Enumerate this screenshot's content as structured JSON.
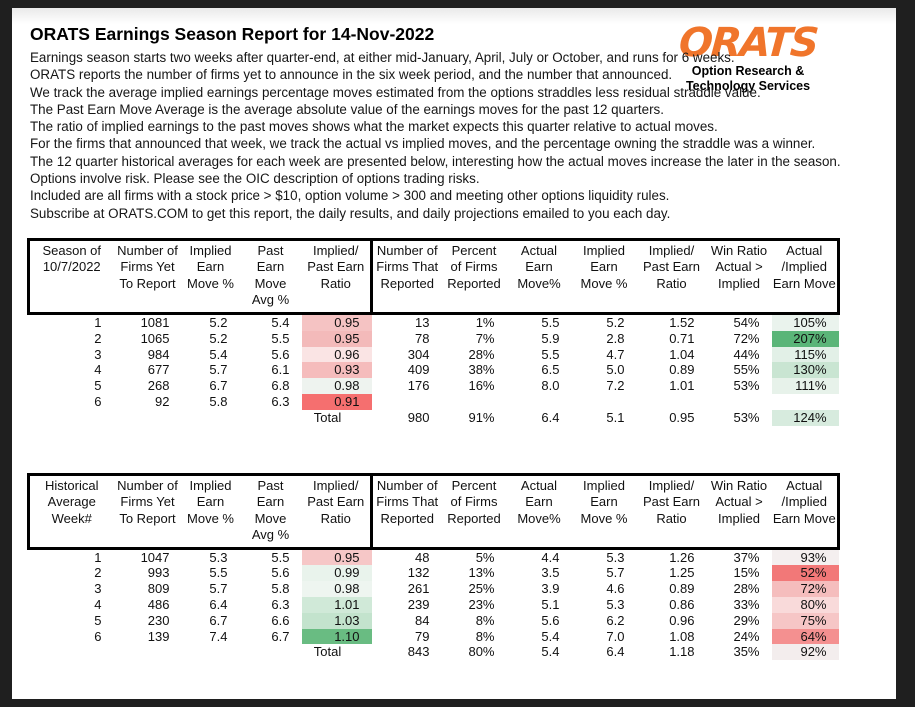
{
  "page": {
    "title": "ORATS Earnings Season Report for 14-Nov-2022",
    "intro_lines": [
      "Earnings season starts two weeks after quarter-end, at either mid-January, April, July or October, and runs for 6 weeks.",
      "ORATS reports the number of firms yet to announce in the six week period, and the number that announced.",
      "We track the average implied earnings percentage moves estimated from the options straddles less residual straddle value.",
      "The Past Earn Move Average is the average absolute value of the earnings moves for the past 12 quarters.",
      "The ratio of implied earnings to the past moves shows what the market expects this quarter relative to actual moves.",
      "For the firms that announced that week, we track the actual vs implied moves, and the percentage owning the straddle was a winner.",
      "The 12 quarter historical averages for each week are presented below, interesting how the actual moves increase the later in the season.",
      "Options involve risk. Please see the OIC description of options trading risks.",
      "Included are all firms with a stock price > $10, option volume > 300 and meeting other options liquidity rules.",
      "Subscribe at ORATS.COM to get this report, the daily results, and daily projections emailed to you each day."
    ]
  },
  "logo": {
    "text": "ORATS",
    "subtitle_line1": "Option Research &",
    "subtitle_line2": "Technology Services",
    "color": "#F0752B"
  },
  "tables": [
    {
      "name": "current-season",
      "header": [
        [
          "Season of",
          "10/7/2022",
          ""
        ],
        [
          "Number of",
          "Firms Yet",
          "To Report"
        ],
        [
          "Implied",
          "Earn",
          "Move %"
        ],
        [
          "Past",
          "Earn Move",
          "Avg %"
        ],
        [
          "Implied/",
          "Past Earn",
          "Ratio"
        ],
        [
          "Number of",
          "Firms That",
          "Reported"
        ],
        [
          "Percent",
          "of Firms",
          "Reported"
        ],
        [
          "Actual",
          "Earn",
          "Move%"
        ],
        [
          "Implied",
          "Earn",
          "Move %"
        ],
        [
          "Implied/",
          "Past Earn",
          "Ratio"
        ],
        [
          "Win Ratio",
          "Actual >",
          "Implied"
        ],
        [
          "Actual",
          "/Implied",
          "Earn Move"
        ]
      ],
      "rows": [
        {
          "cells": [
            "1",
            "1081",
            "5.2",
            "5.4",
            "0.95",
            "13",
            "1%",
            "5.5",
            "5.2",
            "1.52",
            "54%",
            "105%"
          ],
          "ratio_bg": "#F5C3C3",
          "actual_implied_bg": "#EAF3ED"
        },
        {
          "cells": [
            "2",
            "1065",
            "5.2",
            "5.5",
            "0.95",
            "78",
            "7%",
            "5.9",
            "2.8",
            "0.71",
            "72%",
            "207%"
          ],
          "ratio_bg": "#F3BABA",
          "actual_implied_bg": "#5AB578"
        },
        {
          "cells": [
            "3",
            "984",
            "5.4",
            "5.6",
            "0.96",
            "304",
            "28%",
            "5.5",
            "4.7",
            "1.04",
            "44%",
            "115%"
          ],
          "ratio_bg": "#FAE4E4",
          "actual_implied_bg": "#E2F0E7"
        },
        {
          "cells": [
            "4",
            "677",
            "5.7",
            "6.1",
            "0.93",
            "409",
            "38%",
            "6.5",
            "5.0",
            "0.89",
            "55%",
            "130%"
          ],
          "ratio_bg": "#F5BCBC",
          "actual_implied_bg": "#C9E5D2"
        },
        {
          "cells": [
            "5",
            "268",
            "6.7",
            "6.8",
            "0.98",
            "176",
            "16%",
            "8.0",
            "7.2",
            "1.01",
            "53%",
            "111%"
          ],
          "ratio_bg": "#EEF3EF",
          "actual_implied_bg": "#E7F2EA"
        },
        {
          "cells": [
            "6",
            "92",
            "5.8",
            "6.3",
            "0.91",
            "",
            "",
            "",
            "",
            "",
            "",
            ""
          ],
          "ratio_bg": "#F56F6F",
          "actual_implied_bg": null
        },
        {
          "cells": [
            "",
            "",
            "",
            "",
            "Total",
            "980",
            "91%",
            "6.4",
            "5.1",
            "0.95",
            "53%",
            "124%"
          ],
          "is_total": true,
          "ratio_bg": null,
          "actual_implied_bg": "#D7EBDE"
        }
      ]
    },
    {
      "name": "historical-average",
      "header": [
        [
          "Historical",
          "Average",
          "Week#"
        ],
        [
          "Number of",
          "Firms Yet",
          "To Report"
        ],
        [
          "Implied",
          "Earn",
          "Move %"
        ],
        [
          "Past",
          "Earn Move",
          "Avg %"
        ],
        [
          "Implied/",
          "Past Earn",
          "Ratio"
        ],
        [
          "Number of",
          "Firms That",
          "Reported"
        ],
        [
          "Percent",
          "of Firms",
          "Reported"
        ],
        [
          "Actual",
          "Earn",
          "Move%"
        ],
        [
          "Implied",
          "Earn",
          "Move %"
        ],
        [
          "Implied/",
          "Past Earn",
          "Ratio"
        ],
        [
          "Win Ratio",
          "Actual >",
          "Implied"
        ],
        [
          "Actual",
          "/Implied",
          "Earn Move"
        ]
      ],
      "rows": [
        {
          "cells": [
            "1",
            "1047",
            "5.3",
            "5.5",
            "0.95",
            "48",
            "5%",
            "4.4",
            "5.3",
            "1.26",
            "37%",
            "93%"
          ],
          "ratio_bg": "#F6C7C7",
          "actual_implied_bg": "#F4EFEF"
        },
        {
          "cells": [
            "2",
            "993",
            "5.5",
            "5.6",
            "0.99",
            "132",
            "13%",
            "3.5",
            "5.7",
            "1.25",
            "15%",
            "52%"
          ],
          "ratio_bg": "#E9F3EC",
          "actual_implied_bg": "#F27878"
        },
        {
          "cells": [
            "3",
            "809",
            "5.7",
            "5.8",
            "0.98",
            "261",
            "25%",
            "3.9",
            "4.6",
            "0.89",
            "28%",
            "72%"
          ],
          "ratio_bg": "#EEF5F0",
          "actual_implied_bg": "#F5BDBD"
        },
        {
          "cells": [
            "4",
            "486",
            "6.4",
            "6.3",
            "1.01",
            "239",
            "23%",
            "5.1",
            "5.3",
            "0.86",
            "33%",
            "80%"
          ],
          "ratio_bg": "#D0E9D8",
          "actual_implied_bg": "#F9DADA"
        },
        {
          "cells": [
            "5",
            "230",
            "6.7",
            "6.6",
            "1.03",
            "84",
            "8%",
            "5.6",
            "6.2",
            "0.96",
            "29%",
            "75%"
          ],
          "ratio_bg": "#C3E3CD",
          "actual_implied_bg": "#F6C6C6"
        },
        {
          "cells": [
            "6",
            "139",
            "7.4",
            "6.7",
            "1.10",
            "79",
            "8%",
            "5.4",
            "7.0",
            "1.08",
            "24%",
            "64%"
          ],
          "ratio_bg": "#69BC82",
          "actual_implied_bg": "#F49090"
        },
        {
          "cells": [
            "",
            "",
            "",
            "",
            "Total",
            "843",
            "80%",
            "5.4",
            "6.4",
            "1.18",
            "35%",
            "92%"
          ],
          "is_total": true,
          "ratio_bg": null,
          "actual_implied_bg": "#F3EDED"
        }
      ]
    }
  ]
}
